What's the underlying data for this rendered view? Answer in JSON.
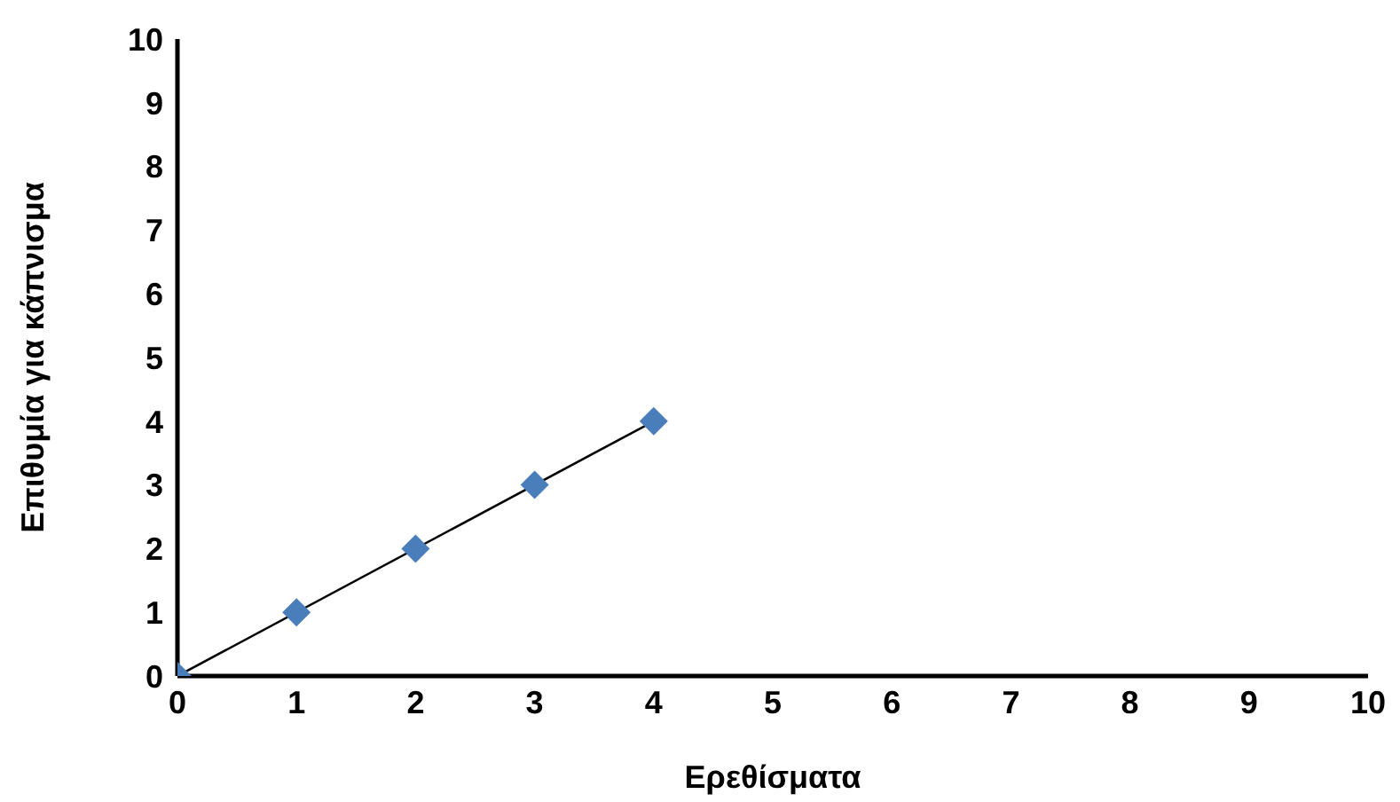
{
  "chart_data": {
    "type": "scatter",
    "xlabel": "Ερεθίσματα",
    "ylabel": "Επιθυμία για κάπνισμα",
    "xlim": [
      0,
      10
    ],
    "xticks": [
      0,
      1,
      2,
      3,
      4,
      5,
      6,
      7,
      8,
      9,
      10
    ],
    "ylim": [
      0,
      10
    ],
    "yticks": [
      0,
      1,
      2,
      3,
      4,
      5,
      6,
      7,
      8,
      9,
      10
    ],
    "grid": false,
    "legend": false,
    "marker": "diamond",
    "series": [
      {
        "color": "#4a7ebb",
        "x": [
          0,
          1,
          2,
          3,
          4
        ],
        "values": [
          0,
          1,
          2,
          3,
          4
        ]
      },
      {
        "type": "line",
        "color": "#000000",
        "x": [
          0,
          4
        ],
        "values": [
          0,
          4
        ],
        "marker": "none"
      }
    ]
  }
}
